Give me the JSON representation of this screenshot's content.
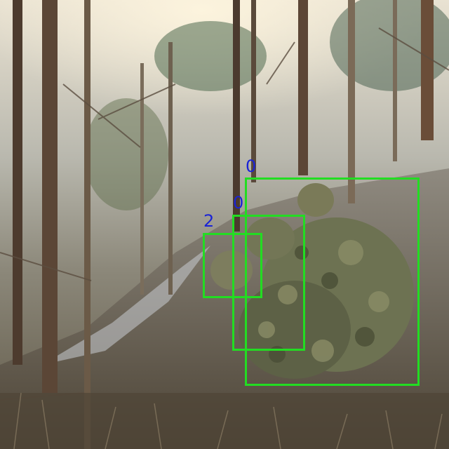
{
  "scene": {
    "description_icon": "forest-photo",
    "box_color": "#22dd22",
    "label_color": "#1a23d6"
  },
  "detections": [
    {
      "label": "0"
    },
    {
      "label": "0"
    },
    {
      "label": "2"
    }
  ]
}
